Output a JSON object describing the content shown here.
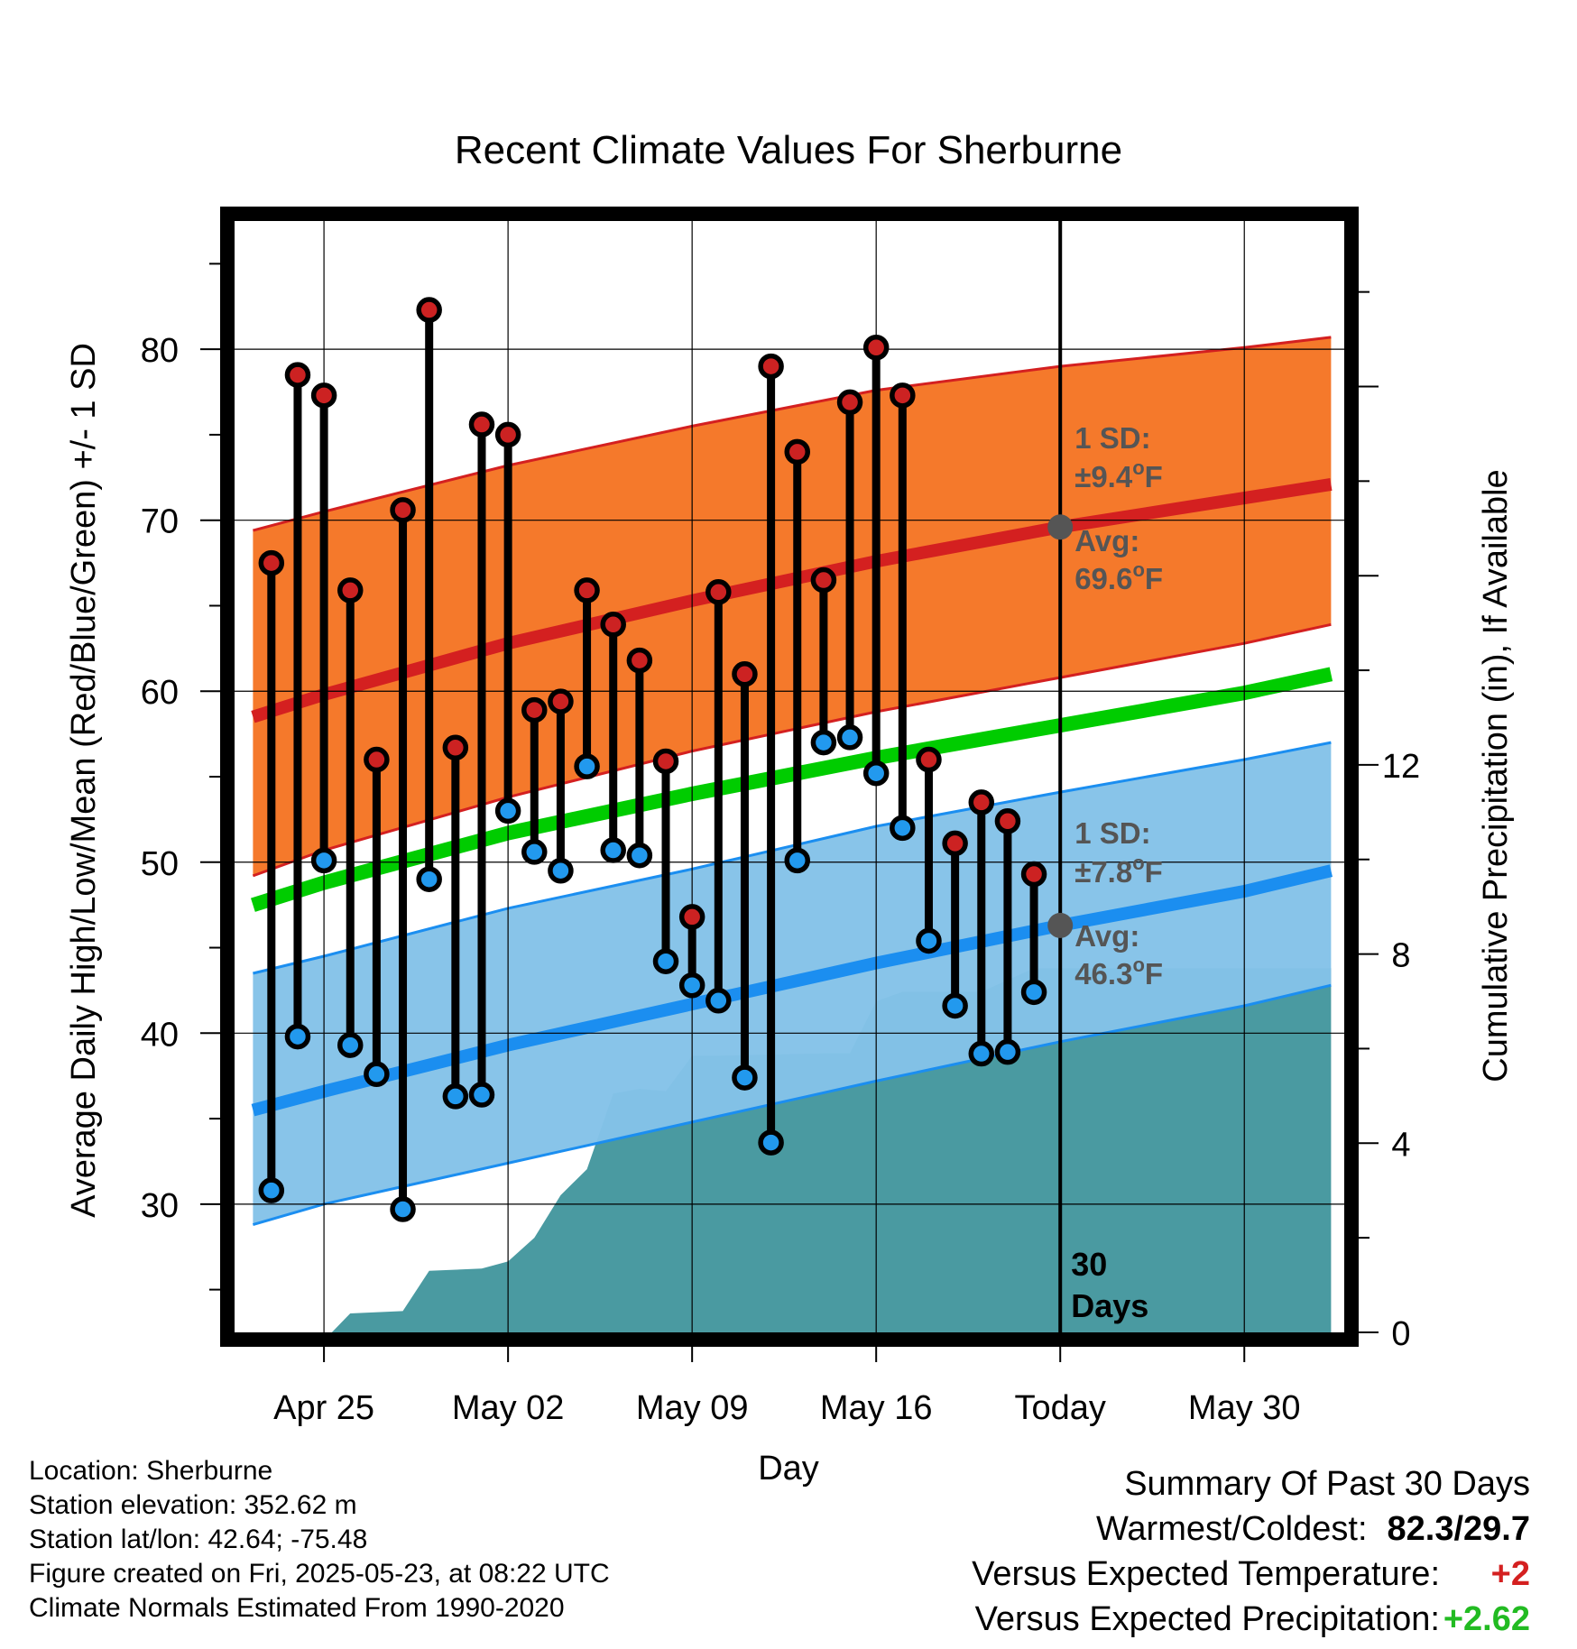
{
  "chart_data": {
    "type": "line",
    "title": "Recent Climate Values For Sherburne",
    "xlabel": "Day",
    "ylabel": "Average Daily High/Low/Mean (Red/Blue/Green) +/- 1 SD",
    "y2label": "Cumulative Precipitation (in), If Available",
    "ylim": [
      22.5,
      87.5
    ],
    "y2lim": [
      0,
      23.5
    ],
    "yticks": [
      30,
      40,
      50,
      60,
      70,
      80
    ],
    "y2ticks": [
      0,
      4,
      8,
      12
    ],
    "xlim": [
      -3.4,
      38.8
    ],
    "xtick_labels": [
      {
        "day": 0,
        "label": "Apr 25"
      },
      {
        "day": 7,
        "label": "May 02"
      },
      {
        "day": 14,
        "label": "May 09"
      },
      {
        "day": 21,
        "label": "May 16"
      },
      {
        "day": 28,
        "label": "Today"
      },
      {
        "day": 35,
        "label": "May 30"
      }
    ],
    "grid": true,
    "today_day": 28,
    "today_label": "30\nDays",
    "colors": {
      "high_band": "#f5792b",
      "high_line": "#d42020",
      "low_band": "#84c2e8",
      "low_line": "#1b8ef0",
      "mean_line": "#00cc00",
      "precip": "#4a9aa1",
      "high_dot": "#cc2222",
      "low_dot": "#2299ee",
      "avg_marker": "#555555"
    },
    "normals": {
      "day": [
        -2.7,
        0,
        7,
        14,
        21,
        28,
        35,
        38.3
      ],
      "high_avg": [
        58.5,
        59.8,
        62.8,
        65.3,
        67.6,
        69.6,
        71.3,
        72.1
      ],
      "high_upper": [
        69.4,
        70.5,
        73.2,
        75.5,
        77.6,
        79.0,
        80.1,
        80.7
      ],
      "high_lower": [
        49.2,
        50.7,
        53.8,
        56.5,
        58.8,
        60.8,
        62.8,
        63.9
      ],
      "mean": [
        47.5,
        48.8,
        51.7,
        54.0,
        56.1,
        58.0,
        59.9,
        61.0
      ],
      "low_avg": [
        35.5,
        36.6,
        39.3,
        41.7,
        44.1,
        46.3,
        48.3,
        49.5
      ],
      "low_upper": [
        43.5,
        44.5,
        47.3,
        49.6,
        52.1,
        54.1,
        56.0,
        57.0
      ],
      "low_lower": [
        28.8,
        30.0,
        32.4,
        34.8,
        37.2,
        39.5,
        41.6,
        42.8
      ]
    },
    "daily": {
      "day": [
        -2,
        -1,
        0,
        1,
        2,
        3,
        4,
        5,
        6,
        7,
        8,
        9,
        10,
        11,
        12,
        13,
        14,
        15,
        16,
        17,
        18,
        19,
        20,
        21,
        22,
        23,
        24,
        25,
        26,
        27
      ],
      "high": [
        67.5,
        78.5,
        77.3,
        65.9,
        56.0,
        70.6,
        82.3,
        56.7,
        75.6,
        75.0,
        58.9,
        59.4,
        65.9,
        63.9,
        61.8,
        55.9,
        46.8,
        65.8,
        61.0,
        79.0,
        74.0,
        66.5,
        76.9,
        80.1,
        77.3,
        56.0,
        51.1,
        53.5,
        52.4,
        49.3
      ],
      "low": [
        30.8,
        39.8,
        50.1,
        39.3,
        37.6,
        29.7,
        49.0,
        36.3,
        36.4,
        53.0,
        50.6,
        49.5,
        55.6,
        50.7,
        50.4,
        44.2,
        42.8,
        41.9,
        37.4,
        33.6,
        50.1,
        57.0,
        57.3,
        55.2,
        52.0,
        45.4,
        41.6,
        38.8,
        38.9,
        42.4
      ]
    },
    "precip_cumulative": {
      "day": [
        0.3,
        1.0,
        3.0,
        4.0,
        6.0,
        7.0,
        8.0,
        9.0,
        10.0,
        11.0,
        12.0,
        13.0,
        14.0,
        15.0,
        19.0,
        20.0,
        21.0,
        22.0,
        23.0,
        24.0,
        25.0,
        26.0,
        27.0,
        28.0,
        38.3
      ],
      "value": [
        0,
        0.4,
        0.45,
        1.3,
        1.35,
        1.5,
        2.0,
        2.9,
        3.45,
        5.05,
        5.15,
        5.1,
        5.85,
        5.85,
        5.9,
        5.9,
        7.0,
        7.2,
        7.2,
        7.2,
        7.2,
        7.45,
        7.7,
        7.7,
        7.7
      ]
    },
    "annotations": {
      "high_sd_title": "1 SD:",
      "high_sd_value": "±9.4",
      "high_avg_title": "Avg:",
      "high_avg_value": "69.6",
      "low_sd_title": "1 SD:",
      "low_sd_value": "±7.8",
      "low_avg_title": "Avg:",
      "low_avg_value": "46.3",
      "deg_unit": "o",
      "f_unit": "F"
    }
  },
  "footer": {
    "location": "Location: Sherburne",
    "elevation": "Station elevation: 352.62 m",
    "latlon": "Station lat/lon: 42.64; -75.48",
    "created": "Figure created on Fri, 2025-05-23, at 08:22 UTC",
    "normals": "Climate Normals Estimated From 1990-2020"
  },
  "summary": {
    "title": "Summary Of Past 30 Days",
    "warmest_label": "Warmest/Coldest:",
    "warmest_value": "82.3/29.7",
    "temp_label": "Versus Expected Temperature:",
    "temp_value": "+2",
    "temp_color": "#d42020",
    "precip_label": "Versus Expected Precipitation:",
    "precip_value": "+2.62",
    "precip_color": "#22bb22"
  }
}
